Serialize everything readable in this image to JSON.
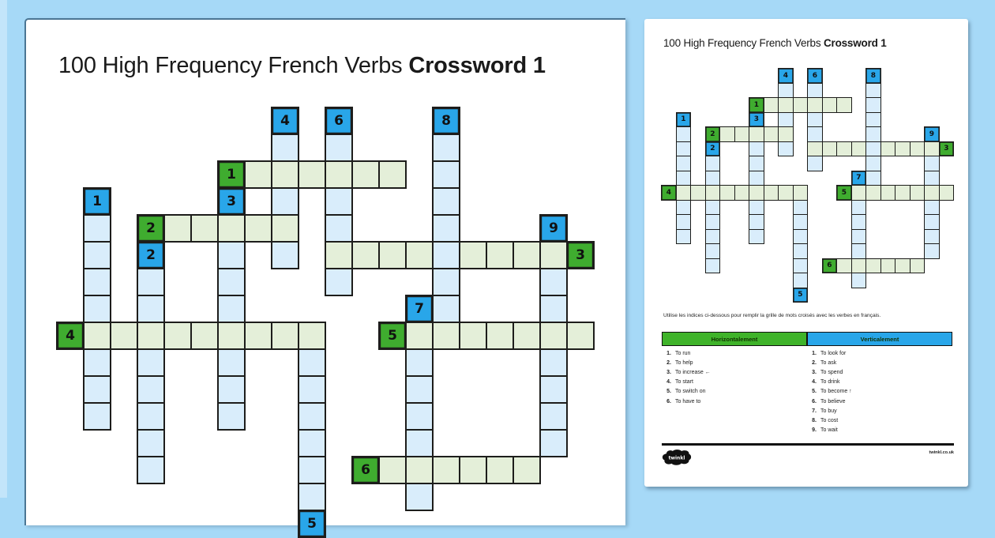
{
  "page": {
    "title_regular": "100 High Frequency French Verbs ",
    "title_bold": "Crossword 1"
  },
  "crossword": {
    "colors": {
      "across_number_bg": "#3fac2f",
      "down_number_bg": "#29a6e9",
      "across_cell_bg": "#e4efd9",
      "down_cell_bg": "#d9edfb",
      "cell_border": "#1d1d1b"
    },
    "cells": [
      [
        6,
        2,
        "na",
        "1"
      ],
      [
        3,
        4,
        "na",
        "2"
      ],
      [
        19,
        5,
        "na",
        "3"
      ],
      [
        0,
        8,
        "na",
        "4"
      ],
      [
        12,
        8,
        "na",
        "5"
      ],
      [
        11,
        13,
        "na",
        "6"
      ],
      [
        1,
        3,
        "nd",
        "1"
      ],
      [
        3,
        5,
        "nd",
        "2"
      ],
      [
        6,
        3,
        "nd",
        "3"
      ],
      [
        8,
        0,
        "nd",
        "4"
      ],
      [
        9,
        15,
        "nd",
        "5"
      ],
      [
        10,
        0,
        "nd",
        "6"
      ],
      [
        13,
        7,
        "nd",
        "7"
      ],
      [
        14,
        0,
        "nd",
        "8"
      ],
      [
        18,
        4,
        "nd",
        "9"
      ],
      [
        7,
        2,
        "a"
      ],
      [
        8,
        2,
        "a"
      ],
      [
        9,
        2,
        "a"
      ],
      [
        10,
        2,
        "a"
      ],
      [
        11,
        2,
        "a"
      ],
      [
        12,
        2,
        "a"
      ],
      [
        4,
        4,
        "a"
      ],
      [
        5,
        4,
        "a"
      ],
      [
        6,
        4,
        "a"
      ],
      [
        7,
        4,
        "a"
      ],
      [
        8,
        4,
        "a"
      ],
      [
        10,
        5,
        "a"
      ],
      [
        11,
        5,
        "a"
      ],
      [
        12,
        5,
        "a"
      ],
      [
        13,
        5,
        "a"
      ],
      [
        14,
        5,
        "a"
      ],
      [
        15,
        5,
        "a"
      ],
      [
        16,
        5,
        "a"
      ],
      [
        17,
        5,
        "a"
      ],
      [
        18,
        5,
        "a"
      ],
      [
        1,
        8,
        "a"
      ],
      [
        2,
        8,
        "a"
      ],
      [
        3,
        8,
        "a"
      ],
      [
        4,
        8,
        "a"
      ],
      [
        5,
        8,
        "a"
      ],
      [
        6,
        8,
        "a"
      ],
      [
        7,
        8,
        "a"
      ],
      [
        8,
        8,
        "a"
      ],
      [
        9,
        8,
        "a"
      ],
      [
        13,
        8,
        "a"
      ],
      [
        14,
        8,
        "a"
      ],
      [
        15,
        8,
        "a"
      ],
      [
        16,
        8,
        "a"
      ],
      [
        17,
        8,
        "a"
      ],
      [
        18,
        8,
        "a"
      ],
      [
        19,
        8,
        "a"
      ],
      [
        12,
        13,
        "a"
      ],
      [
        13,
        13,
        "a"
      ],
      [
        14,
        13,
        "a"
      ],
      [
        15,
        13,
        "a"
      ],
      [
        16,
        13,
        "a"
      ],
      [
        17,
        13,
        "a"
      ],
      [
        1,
        4,
        "d"
      ],
      [
        1,
        5,
        "d"
      ],
      [
        1,
        6,
        "d"
      ],
      [
        1,
        7,
        "d"
      ],
      [
        1,
        9,
        "d"
      ],
      [
        1,
        10,
        "d"
      ],
      [
        1,
        11,
        "d"
      ],
      [
        3,
        6,
        "d"
      ],
      [
        3,
        7,
        "d"
      ],
      [
        3,
        9,
        "d"
      ],
      [
        3,
        10,
        "d"
      ],
      [
        3,
        11,
        "d"
      ],
      [
        3,
        12,
        "d"
      ],
      [
        3,
        13,
        "d"
      ],
      [
        6,
        5,
        "d"
      ],
      [
        6,
        6,
        "d"
      ],
      [
        6,
        7,
        "d"
      ],
      [
        6,
        9,
        "d"
      ],
      [
        6,
        10,
        "d"
      ],
      [
        6,
        11,
        "d"
      ],
      [
        8,
        1,
        "d"
      ],
      [
        8,
        3,
        "d"
      ],
      [
        8,
        5,
        "d"
      ],
      [
        9,
        9,
        "d"
      ],
      [
        9,
        10,
        "d"
      ],
      [
        9,
        11,
        "d"
      ],
      [
        9,
        12,
        "d"
      ],
      [
        9,
        13,
        "d"
      ],
      [
        9,
        14,
        "d"
      ],
      [
        10,
        1,
        "d"
      ],
      [
        10,
        3,
        "d"
      ],
      [
        10,
        4,
        "d"
      ],
      [
        10,
        6,
        "d"
      ],
      [
        13,
        9,
        "d"
      ],
      [
        13,
        10,
        "d"
      ],
      [
        13,
        11,
        "d"
      ],
      [
        13,
        12,
        "d"
      ],
      [
        13,
        14,
        "d"
      ],
      [
        14,
        1,
        "d"
      ],
      [
        14,
        2,
        "d"
      ],
      [
        14,
        3,
        "d"
      ],
      [
        14,
        4,
        "d"
      ],
      [
        14,
        5,
        "d"
      ],
      [
        14,
        6,
        "d"
      ],
      [
        14,
        7,
        "d"
      ],
      [
        18,
        6,
        "d"
      ],
      [
        18,
        7,
        "d"
      ],
      [
        18,
        9,
        "d"
      ],
      [
        18,
        10,
        "d"
      ],
      [
        18,
        11,
        "d"
      ],
      [
        18,
        12,
        "d"
      ]
    ]
  },
  "worksheet": {
    "instructions": "Utilise les indices ci-dessous pour remplir la grille de mots croisés avec les verbes en français.",
    "clue_table": {
      "across_header": "Horizontalement",
      "down_header": "Verticalement",
      "across_clues": [
        {
          "n": "1.",
          "text": "To run"
        },
        {
          "n": "2.",
          "text": "To help"
        },
        {
          "n": "3.",
          "text": "To increase ←"
        },
        {
          "n": "4.",
          "text": "To start"
        },
        {
          "n": "5.",
          "text": "To switch on"
        },
        {
          "n": "6.",
          "text": "To have to"
        }
      ],
      "down_clues": [
        {
          "n": "1.",
          "text": "To look for"
        },
        {
          "n": "2.",
          "text": "To ask"
        },
        {
          "n": "3.",
          "text": "To spend"
        },
        {
          "n": "4.",
          "text": "To drink"
        },
        {
          "n": "5.",
          "text": "To become ↑"
        },
        {
          "n": "6.",
          "text": "To believe"
        },
        {
          "n": "7.",
          "text": "To buy"
        },
        {
          "n": "8.",
          "text": "To cost"
        },
        {
          "n": "9.",
          "text": "To wait"
        }
      ]
    },
    "footer": {
      "logo_text": "twinkl",
      "url": "twinkl.co.uk"
    }
  }
}
